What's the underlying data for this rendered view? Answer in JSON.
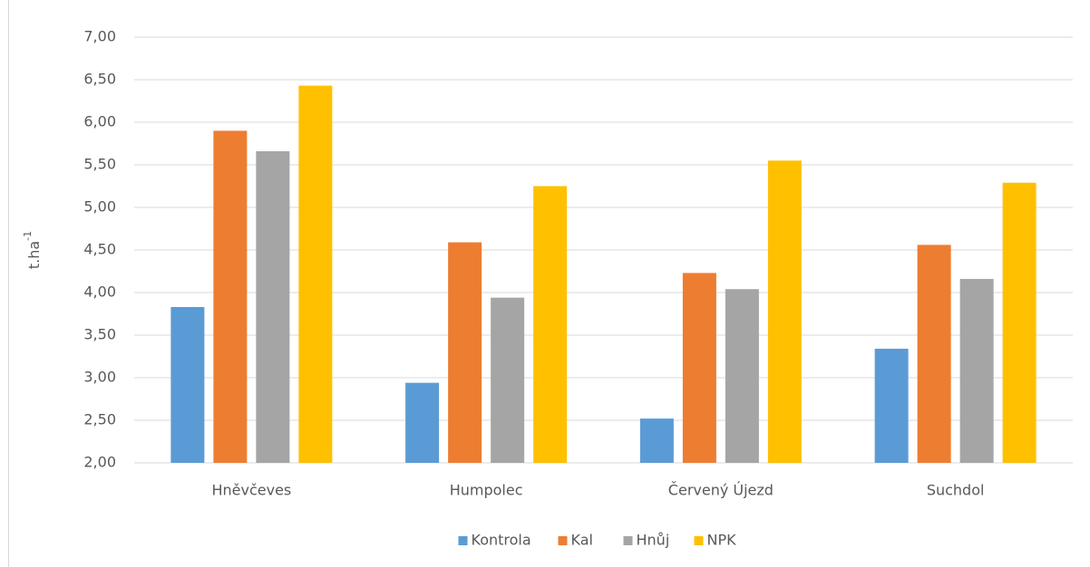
{
  "chart_data": {
    "type": "bar",
    "y_label": "t.ha",
    "y_label_superscript": "-1",
    "categories": [
      "Hněvčeves",
      "Humpolec",
      "Červený Újezd",
      "Suchdol"
    ],
    "series": [
      {
        "name": "Kontrola",
        "color": "#5b9bd5",
        "values": [
          3.83,
          2.94,
          2.52,
          3.34
        ]
      },
      {
        "name": "Kal",
        "color": "#ed7d31",
        "values": [
          5.9,
          4.59,
          4.23,
          4.56
        ]
      },
      {
        "name": "Hnůj",
        "color": "#a5a5a5",
        "values": [
          5.66,
          3.94,
          4.04,
          4.16
        ]
      },
      {
        "name": "NPK",
        "color": "#ffc000",
        "values": [
          6.43,
          5.25,
          5.55,
          5.29
        ]
      }
    ],
    "ylim": [
      2,
      7
    ],
    "yticks": [
      {
        "value": 2,
        "label": "2,00"
      },
      {
        "value": 2.5,
        "label": "2,50"
      },
      {
        "value": 3,
        "label": "3,00"
      },
      {
        "value": 3.5,
        "label": "3,50"
      },
      {
        "value": 4,
        "label": "4,00"
      },
      {
        "value": 4.5,
        "label": "4,50"
      },
      {
        "value": 5,
        "label": "5,00"
      },
      {
        "value": 5.5,
        "label": "5,50"
      },
      {
        "value": 6,
        "label": "6,00"
      },
      {
        "value": 6.5,
        "label": "6,50"
      },
      {
        "value": 7,
        "label": "7,00"
      }
    ],
    "grid": true,
    "legend": "bottom"
  }
}
